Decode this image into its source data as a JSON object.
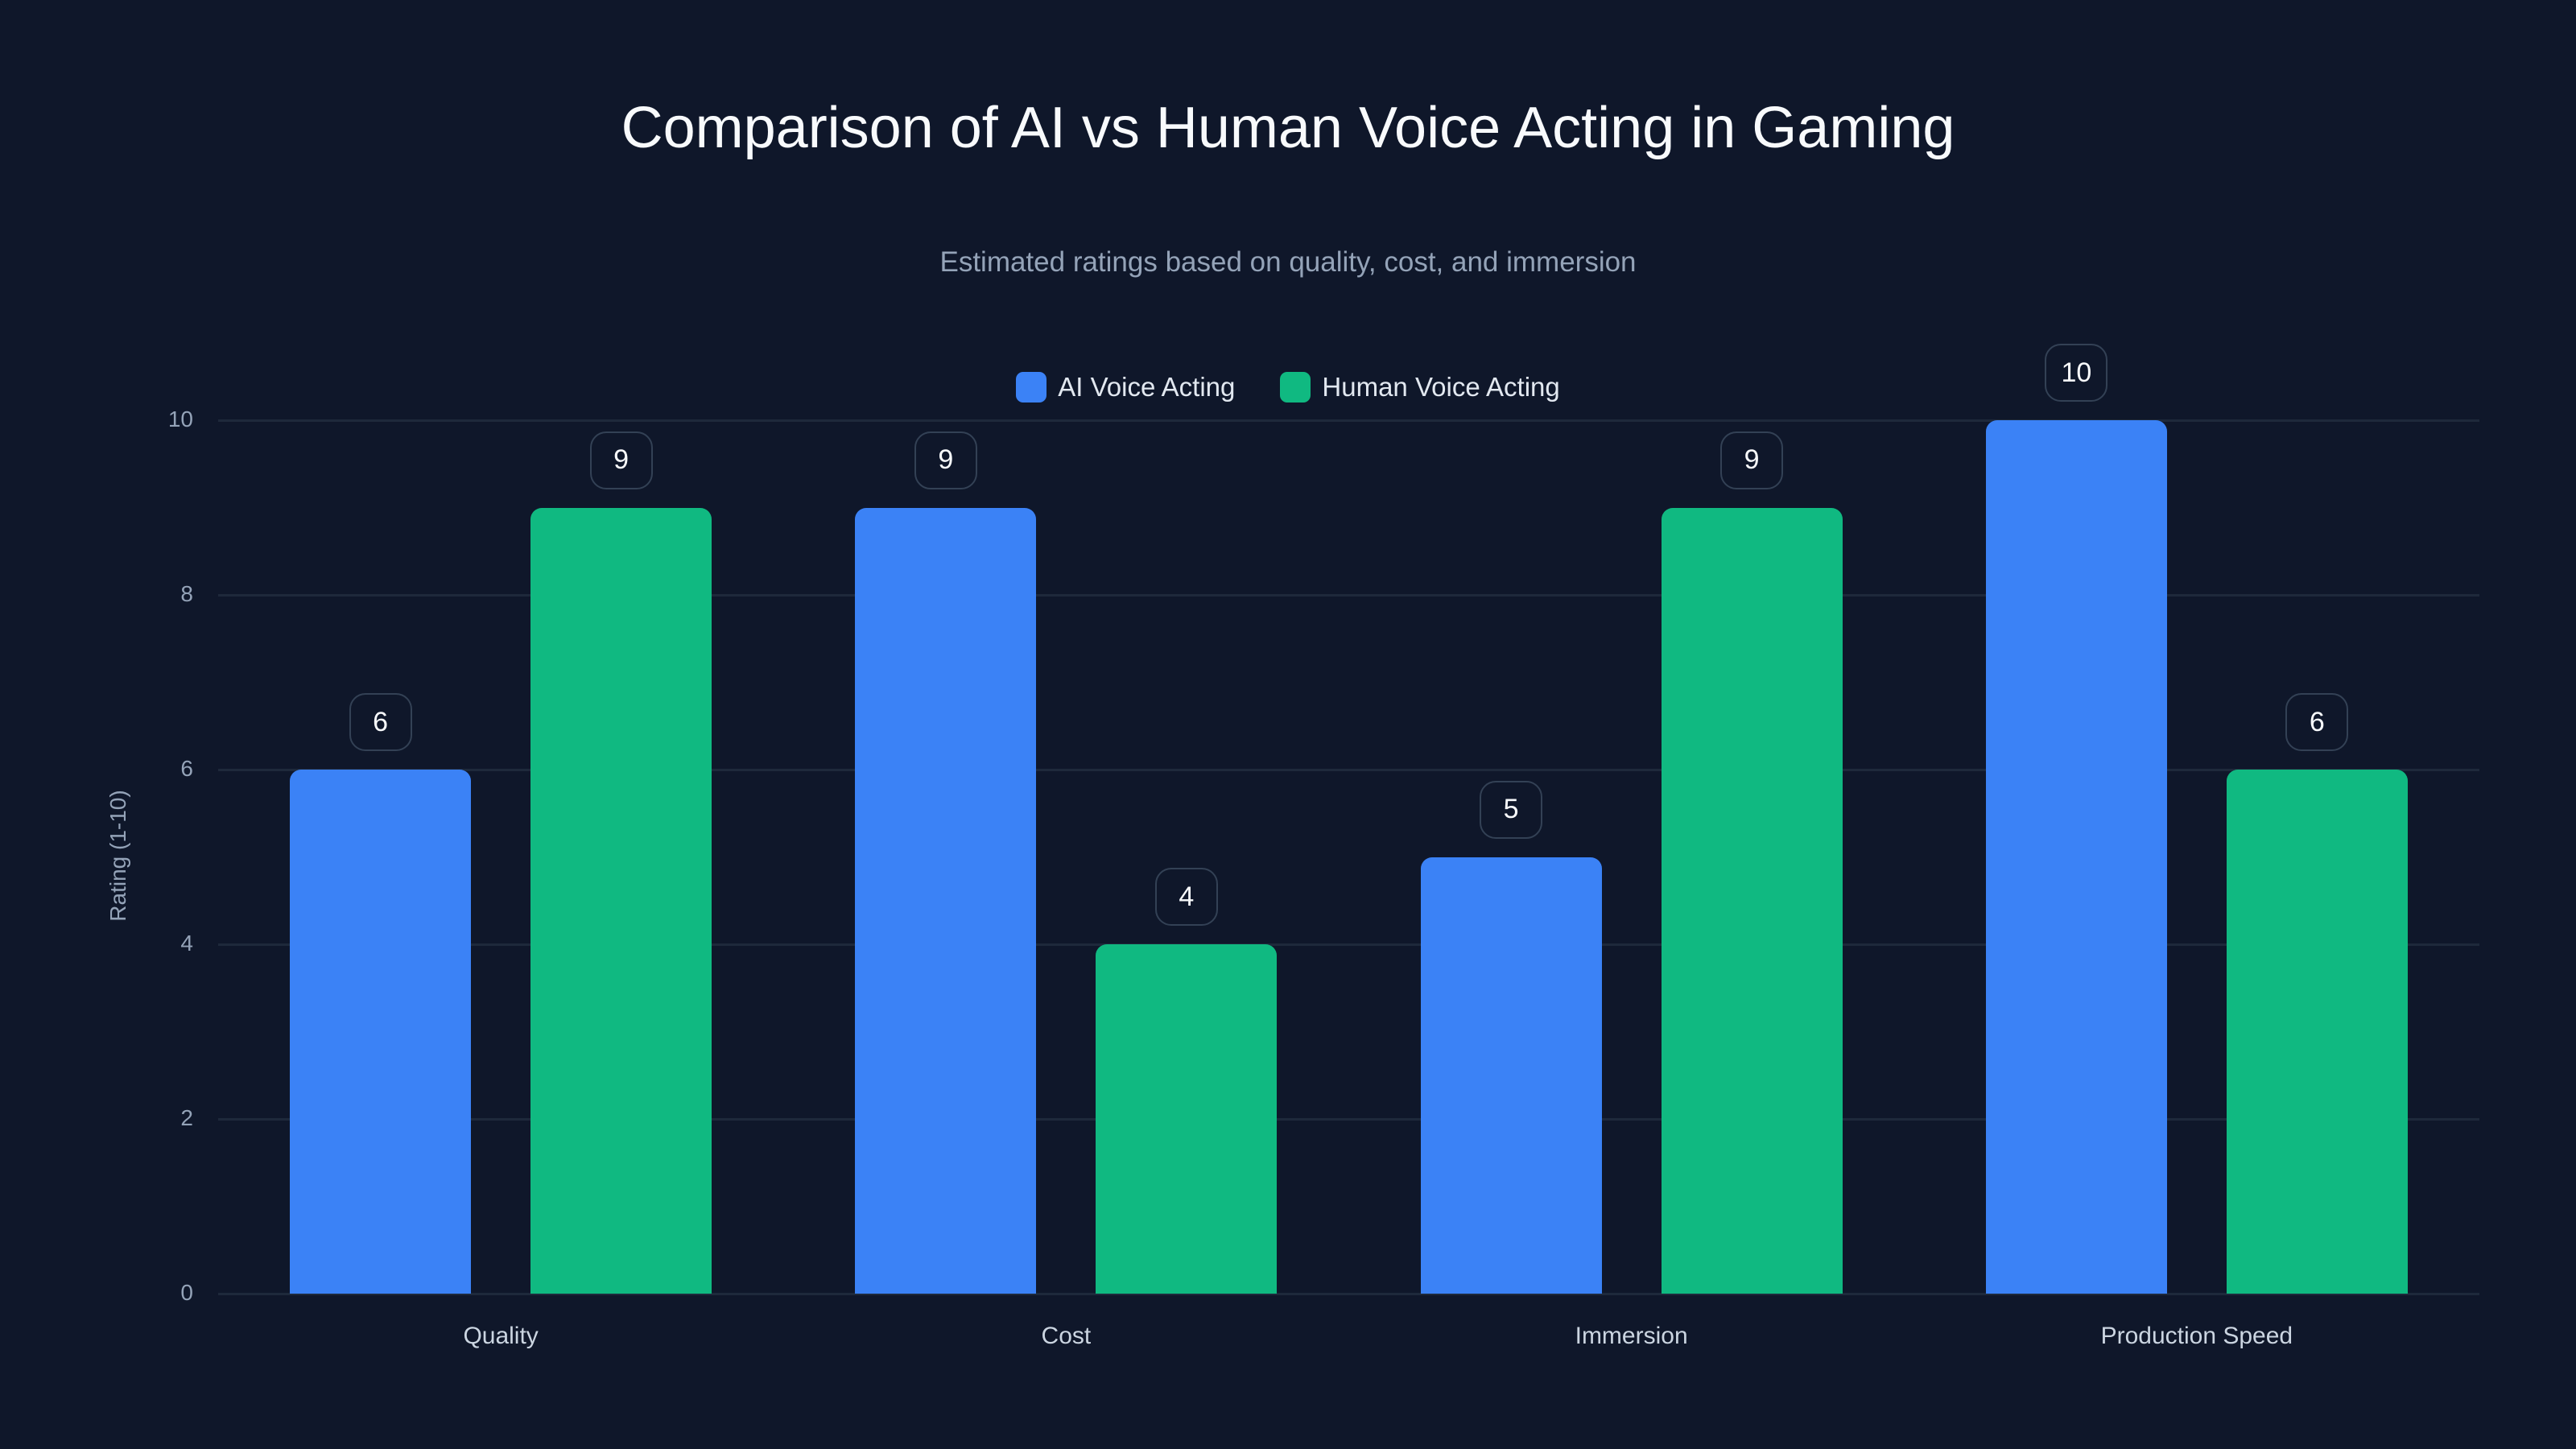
{
  "title": "Comparison of AI vs Human Voice Acting in Gaming",
  "subtitle": "Estimated ratings based on quality, cost, and immersion",
  "legend": [
    {
      "label": "AI Voice Acting",
      "color": "#3b82f6"
    },
    {
      "label": "Human Voice Acting",
      "color": "#10b981"
    }
  ],
  "y_axis": {
    "label": "Rating (1-10)",
    "ticks": [
      "0",
      "2",
      "4",
      "6",
      "8",
      "10"
    ]
  },
  "colors": {
    "background": "#0f172a",
    "ai": "#3b82f6",
    "human": "#10b981",
    "grid": "#1e293b"
  },
  "chart_data": {
    "type": "bar",
    "title": "Comparison of AI vs Human Voice Acting in Gaming",
    "subtitle": "Estimated ratings based on quality, cost, and immersion",
    "categories": [
      "Quality",
      "Cost",
      "Immersion",
      "Production Speed"
    ],
    "series": [
      {
        "name": "AI Voice Acting",
        "values": [
          6,
          9,
          5,
          10
        ],
        "color": "#3b82f6"
      },
      {
        "name": "Human Voice Acting",
        "values": [
          9,
          4,
          9,
          6
        ],
        "color": "#10b981"
      }
    ],
    "xlabel": "",
    "ylabel": "Rating (1-10)",
    "ylim": [
      0,
      10
    ],
    "yticks": [
      0,
      2,
      4,
      6,
      8,
      10
    ],
    "grid": true,
    "legend_position": "top",
    "data_labels": true
  }
}
